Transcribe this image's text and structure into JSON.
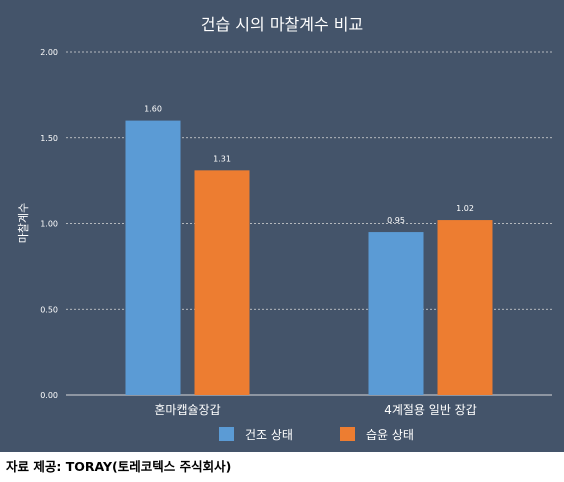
{
  "chart_data": {
    "type": "bar",
    "title": "건습 시의 마찰계수 비교",
    "xlabel": "",
    "ylabel": "마찰계수",
    "categories": [
      "혼마캡슐장갑",
      "4계절용 일반 장갑"
    ],
    "series": [
      {
        "name": "건조 상태",
        "values": [
          1.6,
          0.95
        ],
        "labels": [
          "1.60",
          "0.95"
        ],
        "color": "#5b9bd5"
      },
      {
        "name": "습윤 상태",
        "values": [
          1.31,
          1.02
        ],
        "labels": [
          "1.31",
          "1.02"
        ],
        "color": "#ed7d31"
      }
    ],
    "ylim": [
      0,
      2
    ],
    "yticks": [
      "0.00",
      "0.50",
      "1.00",
      "1.50",
      "2.00"
    ],
    "grid": true,
    "legend": "bottom",
    "background": "#44546a"
  },
  "source_note": "자료 제공:  TORAY(토레코텍스 주식회사)"
}
